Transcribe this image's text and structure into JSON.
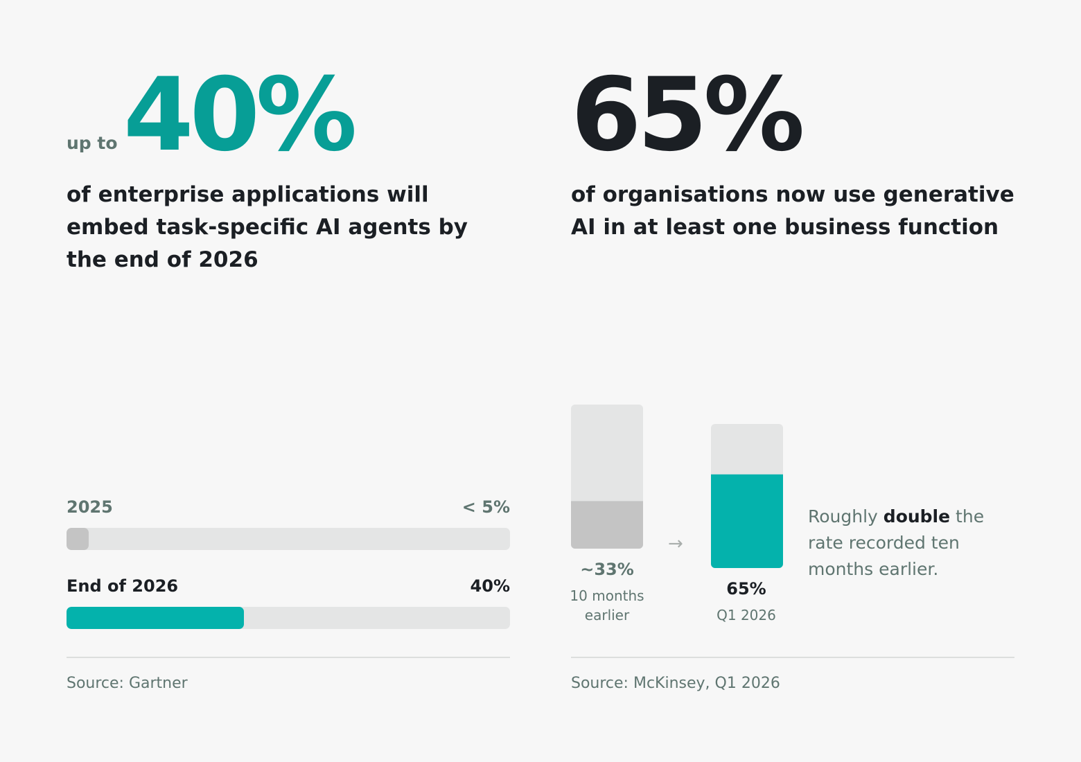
{
  "left": {
    "prefix": "up to",
    "headline": "40%",
    "description": "of enterprise applications will embed task-specific AI agents by the end of 2026",
    "source": "Source: Gartner"
  },
  "right": {
    "headline": "65%",
    "description": "of organisations now use generative AI in at least one business function",
    "note_before": "Roughly ",
    "note_bold": "double",
    "note_after": " the rate recorded ten months earlier.",
    "arrow": "→",
    "source": "Source: McKinsey, Q1 2026"
  },
  "colors": {
    "teal": "#04b2ac",
    "teal_text": "#079e96",
    "gray_fill": "#c4c4c4",
    "track": "#e4e5e5"
  },
  "chart_data": [
    {
      "type": "bar",
      "orientation": "horizontal",
      "categories": [
        "2025",
        "End of 2026"
      ],
      "values": [
        5,
        40
      ],
      "value_labels": [
        "< 5%",
        "40%"
      ],
      "xlim": [
        0,
        100
      ]
    },
    {
      "type": "bar",
      "orientation": "vertical",
      "categories": [
        "10 months earlier",
        "Q1 2026"
      ],
      "values": [
        33,
        65
      ],
      "value_labels": [
        "~33%",
        "65%"
      ],
      "ylim": [
        0,
        100
      ]
    }
  ]
}
